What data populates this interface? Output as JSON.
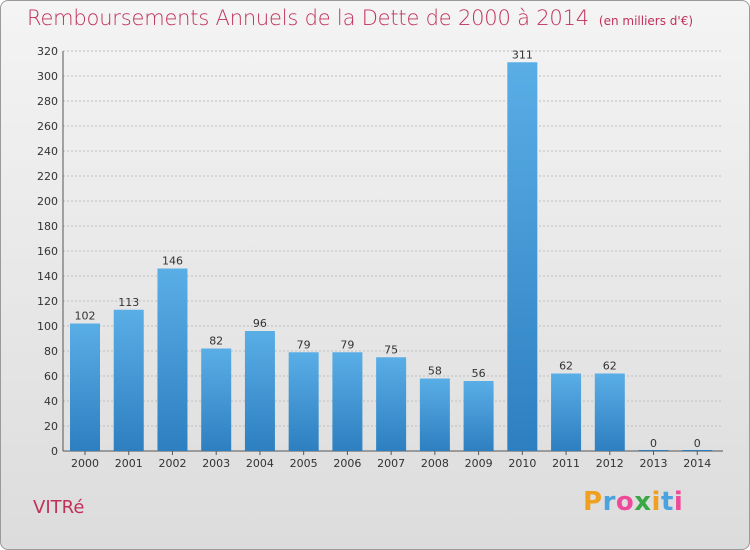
{
  "header": {
    "title": "Remboursements Annuels de la Dette de 2000 à 2014",
    "unit": "(en milliers d'€)"
  },
  "footer": {
    "city": "VITRé",
    "logo_letters": [
      "P",
      "r",
      "o",
      "x",
      "i",
      "t",
      "i"
    ],
    "logo_colors": [
      "#f0a020",
      "#4aa3df",
      "#ef4a9a",
      "#3aa845",
      "#f0a020",
      "#4aa3df",
      "#ef4a9a"
    ]
  },
  "colors": {
    "bar_light": "#5aaee6",
    "bar_dark": "#2d7fc0",
    "title": "#c0305a",
    "grid": "#bfbfbf"
  },
  "chart_data": {
    "type": "bar",
    "title": "Remboursements Annuels de la Dette de 2000 à 2014",
    "categories": [
      "2000",
      "2001",
      "2002",
      "2003",
      "2004",
      "2005",
      "2006",
      "2007",
      "2008",
      "2009",
      "2010",
      "2011",
      "2012",
      "2013",
      "2014"
    ],
    "values": [
      102,
      113,
      146,
      82,
      96,
      79,
      79,
      75,
      58,
      56,
      311,
      62,
      62,
      0,
      0
    ],
    "data_labels": [
      "102",
      "113",
      "146",
      "82",
      "96",
      "79",
      "79",
      "75",
      "58",
      "56",
      "311",
      "62",
      "62",
      "0",
      "0"
    ],
    "yticks": [
      0,
      20,
      40,
      60,
      80,
      100,
      120,
      140,
      160,
      180,
      200,
      220,
      240,
      260,
      280,
      300,
      320
    ],
    "ylim": [
      0,
      320
    ],
    "xlabel": "",
    "ylabel": "",
    "grid": true,
    "legend": "none"
  }
}
